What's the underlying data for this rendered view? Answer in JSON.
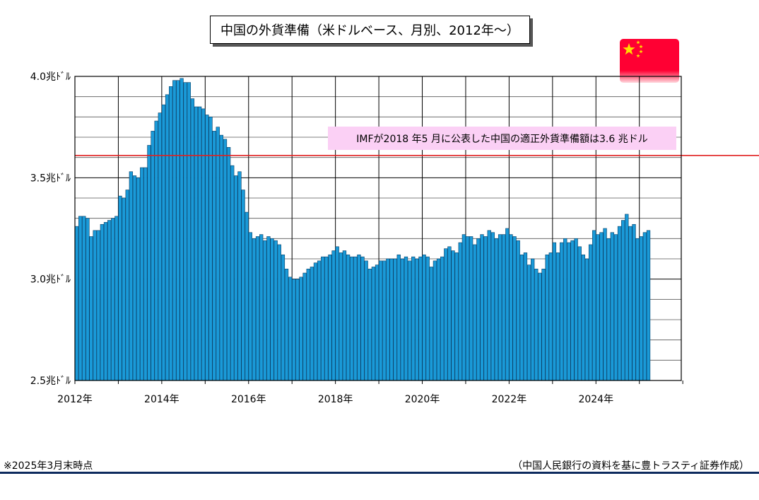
{
  "title": "中国の外貨準備（米ドルベース、月別、2012年～）",
  "annotation": "IMFが2018 年5 月に公表した中国の適正外貨準備額は3.6 兆ドル",
  "note": "※2025年3月末時点",
  "source": "（中国人民銀行の資料を基に豊トラスティ証券作成）",
  "colors": {
    "bar_fill": "#1a9ad8",
    "bar_edge": "#0a3f66",
    "reference_line": "#e02020",
    "annotation_bg": "#fbd0f5",
    "rule": "#0d2a5e"
  },
  "flag": {
    "country": "China",
    "icon": "china-flag-icon"
  },
  "chart_data": {
    "type": "bar",
    "y_unit": "兆ドル",
    "ylim": [
      2.5,
      4.0
    ],
    "y_ticks": [
      {
        "value": 4.0,
        "label": "4.0兆ﾄﾞﾙ"
      },
      {
        "value": 3.5,
        "label": "3.5兆ﾄﾞﾙ"
      },
      {
        "value": 3.0,
        "label": "3.0兆ﾄﾞﾙ"
      },
      {
        "value": 2.5,
        "label": "2.5兆ﾄﾞﾙ"
      }
    ],
    "x_tick_labels": [
      "2012年",
      "2014年",
      "2016年",
      "2018年",
      "2020年",
      "2022年",
      "2024年"
    ],
    "grid": true,
    "reference_line": {
      "value": 3.61
    },
    "categories": [
      "2012-01",
      "2012-02",
      "2012-03",
      "2012-04",
      "2012-05",
      "2012-06",
      "2012-07",
      "2012-08",
      "2012-09",
      "2012-10",
      "2012-11",
      "2012-12",
      "2013-01",
      "2013-02",
      "2013-03",
      "2013-04",
      "2013-05",
      "2013-06",
      "2013-07",
      "2013-08",
      "2013-09",
      "2013-10",
      "2013-11",
      "2013-12",
      "2014-01",
      "2014-02",
      "2014-03",
      "2014-04",
      "2014-05",
      "2014-06",
      "2014-07",
      "2014-08",
      "2014-09",
      "2014-10",
      "2014-11",
      "2014-12",
      "2015-01",
      "2015-02",
      "2015-03",
      "2015-04",
      "2015-05",
      "2015-06",
      "2015-07",
      "2015-08",
      "2015-09",
      "2015-10",
      "2015-11",
      "2015-12",
      "2016-01",
      "2016-02",
      "2016-03",
      "2016-04",
      "2016-05",
      "2016-06",
      "2016-07",
      "2016-08",
      "2016-09",
      "2016-10",
      "2016-11",
      "2016-12",
      "2017-01",
      "2017-02",
      "2017-03",
      "2017-04",
      "2017-05",
      "2017-06",
      "2017-07",
      "2017-08",
      "2017-09",
      "2017-10",
      "2017-11",
      "2017-12",
      "2018-01",
      "2018-02",
      "2018-03",
      "2018-04",
      "2018-05",
      "2018-06",
      "2018-07",
      "2018-08",
      "2018-09",
      "2018-10",
      "2018-11",
      "2018-12",
      "2019-01",
      "2019-02",
      "2019-03",
      "2019-04",
      "2019-05",
      "2019-06",
      "2019-07",
      "2019-08",
      "2019-09",
      "2019-10",
      "2019-11",
      "2019-12",
      "2020-01",
      "2020-02",
      "2020-03",
      "2020-04",
      "2020-05",
      "2020-06",
      "2020-07",
      "2020-08",
      "2020-09",
      "2020-10",
      "2020-11",
      "2020-12",
      "2021-01",
      "2021-02",
      "2021-03",
      "2021-04",
      "2021-05",
      "2021-06",
      "2021-07",
      "2021-08",
      "2021-09",
      "2021-10",
      "2021-11",
      "2021-12",
      "2022-01",
      "2022-02",
      "2022-03",
      "2022-04",
      "2022-05",
      "2022-06",
      "2022-07",
      "2022-08",
      "2022-09",
      "2022-10",
      "2022-11",
      "2022-12",
      "2023-01",
      "2023-02",
      "2023-03",
      "2023-04",
      "2023-05",
      "2023-06",
      "2023-07",
      "2023-08",
      "2023-09",
      "2023-10",
      "2023-11",
      "2023-12",
      "2024-01",
      "2024-02",
      "2024-03",
      "2024-04",
      "2024-05",
      "2024-06",
      "2024-07",
      "2024-08",
      "2024-09",
      "2024-10",
      "2024-11",
      "2024-12",
      "2025-01",
      "2025-02",
      "2025-03"
    ],
    "values": [
      3.26,
      3.31,
      3.31,
      3.3,
      3.21,
      3.24,
      3.24,
      3.27,
      3.28,
      3.29,
      3.3,
      3.31,
      3.41,
      3.4,
      3.44,
      3.53,
      3.51,
      3.5,
      3.55,
      3.55,
      3.66,
      3.73,
      3.78,
      3.82,
      3.86,
      3.91,
      3.95,
      3.98,
      3.98,
      3.99,
      3.97,
      3.97,
      3.89,
      3.85,
      3.85,
      3.84,
      3.81,
      3.8,
      3.73,
      3.75,
      3.71,
      3.69,
      3.65,
      3.56,
      3.51,
      3.53,
      3.44,
      3.33,
      3.23,
      3.2,
      3.21,
      3.22,
      3.19,
      3.21,
      3.2,
      3.19,
      3.17,
      3.12,
      3.05,
      3.01,
      3.0,
      3.0,
      3.01,
      3.03,
      3.05,
      3.06,
      3.08,
      3.09,
      3.11,
      3.11,
      3.12,
      3.14,
      3.16,
      3.13,
      3.14,
      3.12,
      3.11,
      3.11,
      3.12,
      3.11,
      3.09,
      3.05,
      3.06,
      3.07,
      3.09,
      3.09,
      3.1,
      3.1,
      3.1,
      3.12,
      3.1,
      3.11,
      3.09,
      3.11,
      3.1,
      3.11,
      3.12,
      3.11,
      3.06,
      3.09,
      3.1,
      3.11,
      3.15,
      3.16,
      3.14,
      3.13,
      3.18,
      3.22,
      3.21,
      3.21,
      3.17,
      3.2,
      3.22,
      3.21,
      3.24,
      3.23,
      3.2,
      3.22,
      3.22,
      3.25,
      3.22,
      3.21,
      3.19,
      3.12,
      3.13,
      3.07,
      3.1,
      3.05,
      3.03,
      3.05,
      3.12,
      3.13,
      3.18,
      3.13,
      3.18,
      3.2,
      3.18,
      3.19,
      3.2,
      3.16,
      3.12,
      3.1,
      3.17,
      3.24,
      3.22,
      3.23,
      3.25,
      3.2,
      3.23,
      3.22,
      3.26,
      3.29,
      3.32,
      3.26,
      3.27,
      3.2,
      3.21,
      3.23,
      3.24
    ]
  }
}
